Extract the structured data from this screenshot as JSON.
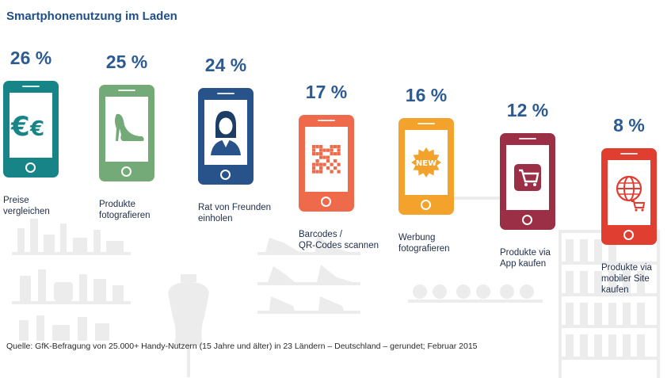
{
  "title": "Smartphonenutzung im Laden",
  "source": "Quelle: GfK-Befragung von 25.000+ Handy-Nutzern (15 Jahre und älter) in 23 Ländern – Deutschland – gerundet; Februar 2015",
  "chart_data": {
    "type": "bar",
    "title": "Smartphonenutzung im Laden",
    "unit": "%",
    "categories": [
      "Preise vergleichen",
      "Produkte fotografieren",
      "Rat von Freunden einholen",
      "Barcodes / QR-Codes scannen",
      "Werbung fotografieren",
      "Produkte via App kaufen",
      "Produkte via mobiler Site kaufen"
    ],
    "values": [
      26,
      25,
      24,
      17,
      16,
      12,
      8
    ],
    "value_labels": [
      "26 %",
      "25 %",
      "24 %",
      "17 %",
      "16 %",
      "12 %",
      "8 %"
    ],
    "label_lines": [
      [
        "Preise",
        "vergleichen"
      ],
      [
        "Produkte",
        "fotografieren"
      ],
      [
        "Rat von Freunden",
        "einholen"
      ],
      [
        "Barcodes /",
        "QR-Codes scannen"
      ],
      [
        "Werbung",
        "fotografieren"
      ],
      [
        "Produkte via",
        "App kaufen"
      ],
      [
        "Produkte via",
        "mobiler Site",
        "kaufen"
      ]
    ],
    "colors": [
      "#178587",
      "#74aa78",
      "#27528a",
      "#ee6a4b",
      "#f3a32b",
      "#9a2f45",
      "#e03e30"
    ],
    "icons": [
      "euro-icon",
      "high-heel-icon",
      "person-icon",
      "qr-code-icon",
      "new-badge-icon",
      "shopping-cart-app-icon",
      "globe-cart-icon"
    ],
    "new_badge_text": "NEW",
    "ylim": [
      0,
      30
    ]
  }
}
